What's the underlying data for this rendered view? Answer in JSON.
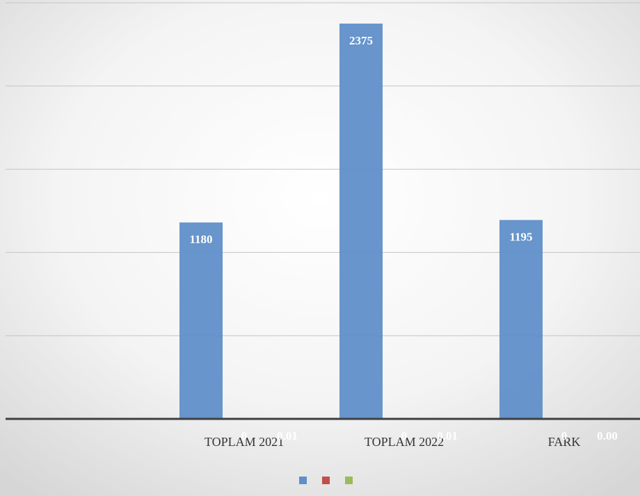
{
  "chart_data": {
    "type": "bar",
    "categories": [
      "TOPLAM 2021",
      "TOPLAM 2022",
      "FARK"
    ],
    "series": [
      {
        "color": "#5f8fc9",
        "values": [
          1180,
          2375,
          1195
        ]
      },
      {
        "color": "#c0504d",
        "values": [
          0,
          0,
          0
        ]
      },
      {
        "color": "#9bbb59",
        "values": [
          0.01,
          0.01,
          0
        ],
        "value_labels": [
          "0.01",
          "0.01",
          "0.00"
        ]
      }
    ],
    "ylim": [
      0,
      2500
    ],
    "yticks": [
      0,
      500,
      1000,
      1500,
      2000,
      2500
    ],
    "grid": true
  }
}
